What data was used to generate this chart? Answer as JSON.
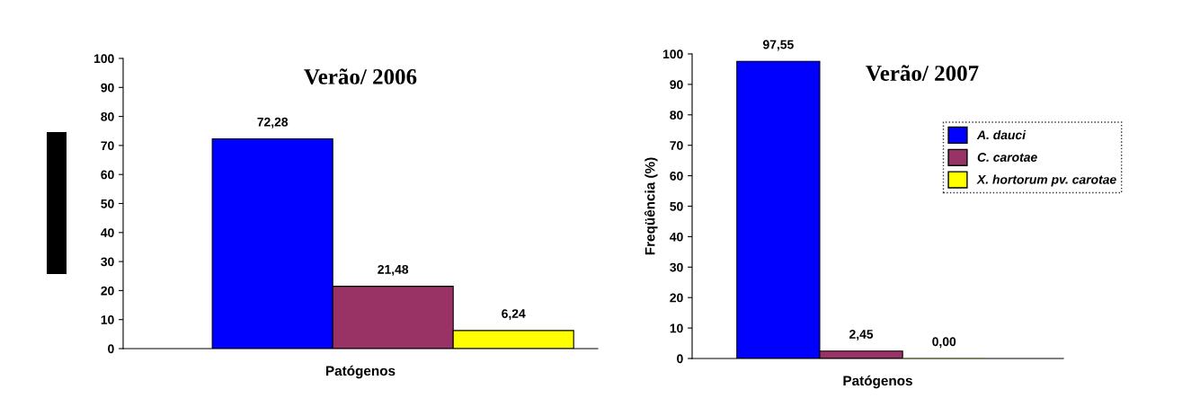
{
  "chart_data": [
    {
      "type": "bar",
      "title": "Verão/ 2006",
      "xlabel": "Patógenos",
      "categories": [
        null
      ],
      "ylim": [
        0,
        100
      ],
      "yticks": [
        0,
        10,
        20,
        30,
        40,
        50,
        60,
        70,
        80,
        90,
        100
      ],
      "grid": false,
      "legend": false,
      "series": [
        {
          "color": "#0000ff",
          "values": [
            72.28
          ],
          "value_labels": [
            "72,28"
          ]
        },
        {
          "color": "#993366",
          "values": [
            21.48
          ],
          "value_labels": [
            "21,48"
          ]
        },
        {
          "color": "#ffff00",
          "values": [
            6.24
          ],
          "value_labels": [
            "6,24"
          ]
        }
      ]
    },
    {
      "type": "bar",
      "title": "Verão/ 2007",
      "xlabel": "Patógenos",
      "ylabel": "Freqüência (%)",
      "categories": [
        null
      ],
      "ylim": [
        0,
        100
      ],
      "yticks": [
        0,
        10,
        20,
        30,
        40,
        50,
        60,
        70,
        80,
        90,
        100
      ],
      "grid": false,
      "legend": "right",
      "series": [
        {
          "name": "A. dauci",
          "color": "#0000ff",
          "values": [
            97.55
          ],
          "value_labels": [
            "97,55"
          ]
        },
        {
          "name": "C. carotae",
          "color": "#993366",
          "values": [
            2.45
          ],
          "value_labels": [
            "2,45"
          ]
        },
        {
          "name": "X. hortorum pv. carotae",
          "color": "#ffff00",
          "values": [
            0.0
          ],
          "value_labels": [
            "0,00"
          ]
        }
      ]
    }
  ]
}
